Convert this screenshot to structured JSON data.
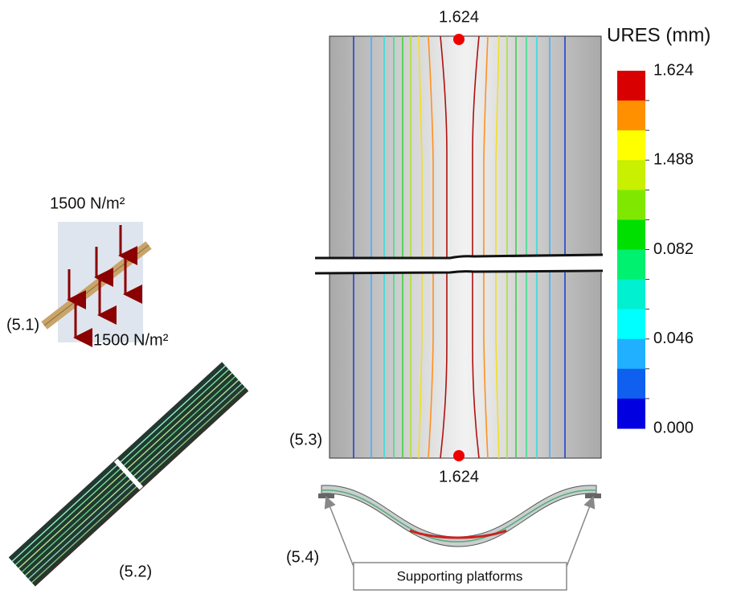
{
  "labels": {
    "load_top": "1500 N/m²",
    "load_bottom": "1500 N/m²",
    "fig_5_1": "(5.1)",
    "fig_5_2": "(5.2)",
    "fig_5_3": "(5.3)",
    "fig_5_4": "(5.4)",
    "platforms": "Supporting platforms"
  },
  "plot": {
    "max_top": "1.624",
    "max_bottom": "1.624"
  },
  "colorbar": {
    "title": "URES (mm)",
    "tick_labels": [
      "1.624",
      "1.488",
      "0.082",
      "0.046",
      "0.000"
    ],
    "colors": [
      "#d80000",
      "#ff9000",
      "#ffff00",
      "#c8f000",
      "#80e800",
      "#00e000",
      "#00f070",
      "#00f0d0",
      "#00ffff",
      "#20b0ff",
      "#1060f0",
      "#0000e0"
    ]
  }
}
